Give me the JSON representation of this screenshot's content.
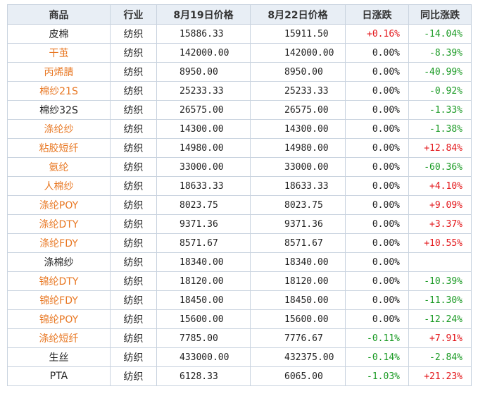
{
  "headers": [
    "商品",
    "行业",
    "8月19日价格",
    "8月22日价格",
    "日涨跌",
    "同比涨跌"
  ],
  "colors": {
    "orange": "#e87722",
    "up": "#e3171b",
    "down": "#1a9a24"
  },
  "rows": [
    {
      "name": "皮棉",
      "orange": false,
      "industry": "纺织",
      "p1": "15886.33",
      "p2": "15911.50",
      "daily": "+0.16%",
      "yoy": "-14.04%"
    },
    {
      "name": "干茧",
      "orange": true,
      "industry": "纺织",
      "p1": "142000.00",
      "p2": "142000.00",
      "daily": "0.00%",
      "yoy": "-8.39%"
    },
    {
      "name": "丙烯腈",
      "orange": true,
      "industry": "纺织",
      "p1": "8950.00",
      "p2": "8950.00",
      "daily": "0.00%",
      "yoy": "-40.99%"
    },
    {
      "name": "棉纱21S",
      "orange": true,
      "industry": "纺织",
      "p1": "25233.33",
      "p2": "25233.33",
      "daily": "0.00%",
      "yoy": "-0.92%"
    },
    {
      "name": "棉纱32S",
      "orange": false,
      "industry": "纺织",
      "p1": "26575.00",
      "p2": "26575.00",
      "daily": "0.00%",
      "yoy": "-1.33%"
    },
    {
      "name": "涤纶纱",
      "orange": true,
      "industry": "纺织",
      "p1": "14300.00",
      "p2": "14300.00",
      "daily": "0.00%",
      "yoy": "-1.38%"
    },
    {
      "name": "粘胶短纤",
      "orange": true,
      "industry": "纺织",
      "p1": "14980.00",
      "p2": "14980.00",
      "daily": "0.00%",
      "yoy": "+12.84%"
    },
    {
      "name": "氨纶",
      "orange": true,
      "industry": "纺织",
      "p1": "33000.00",
      "p2": "33000.00",
      "daily": "0.00%",
      "yoy": "-60.36%"
    },
    {
      "name": "人棉纱",
      "orange": true,
      "industry": "纺织",
      "p1": "18633.33",
      "p2": "18633.33",
      "daily": "0.00%",
      "yoy": "+4.10%"
    },
    {
      "name": "涤纶POY",
      "orange": true,
      "industry": "纺织",
      "p1": "8023.75",
      "p2": "8023.75",
      "daily": "0.00%",
      "yoy": "+9.09%"
    },
    {
      "name": "涤纶DTY",
      "orange": true,
      "industry": "纺织",
      "p1": "9371.36",
      "p2": "9371.36",
      "daily": "0.00%",
      "yoy": "+3.37%"
    },
    {
      "name": "涤纶FDY",
      "orange": true,
      "industry": "纺织",
      "p1": "8571.67",
      "p2": "8571.67",
      "daily": "0.00%",
      "yoy": "+10.55%"
    },
    {
      "name": "涤棉纱",
      "orange": false,
      "industry": "纺织",
      "p1": "18340.00",
      "p2": "18340.00",
      "daily": "0.00%",
      "yoy": ""
    },
    {
      "name": "锦纶DTY",
      "orange": true,
      "industry": "纺织",
      "p1": "18120.00",
      "p2": "18120.00",
      "daily": "0.00%",
      "yoy": "-10.39%"
    },
    {
      "name": "锦纶FDY",
      "orange": true,
      "industry": "纺织",
      "p1": "18450.00",
      "p2": "18450.00",
      "daily": "0.00%",
      "yoy": "-11.30%"
    },
    {
      "name": "锦纶POY",
      "orange": true,
      "industry": "纺织",
      "p1": "15600.00",
      "p2": "15600.00",
      "daily": "0.00%",
      "yoy": "-12.24%"
    },
    {
      "name": "涤纶短纤",
      "orange": true,
      "industry": "纺织",
      "p1": "7785.00",
      "p2": "7776.67",
      "daily": "-0.11%",
      "yoy": "+7.91%"
    },
    {
      "name": "生丝",
      "orange": false,
      "industry": "纺织",
      "p1": "433000.00",
      "p2": "432375.00",
      "daily": "-0.14%",
      "yoy": "-2.84%"
    },
    {
      "name": "PTA",
      "orange": false,
      "industry": "纺织",
      "p1": "6128.33",
      "p2": "6065.00",
      "daily": "-1.03%",
      "yoy": "+21.23%"
    }
  ]
}
